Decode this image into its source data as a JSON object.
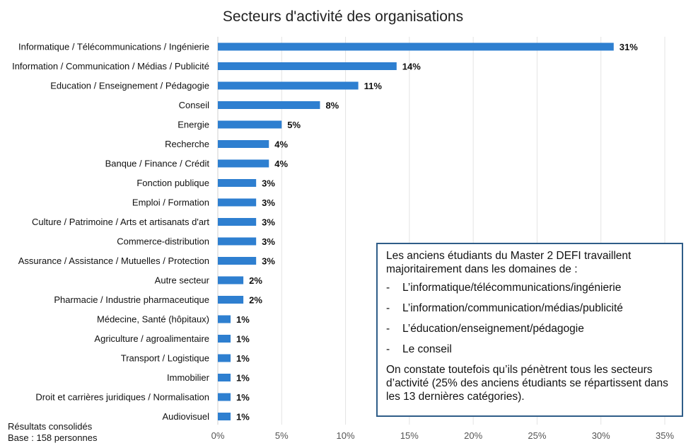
{
  "chart_data": {
    "type": "bar",
    "orientation": "horizontal",
    "title": "Secteurs d'activité des organisations",
    "categories": [
      "Informatique / Télécommunications / Ingénierie",
      "Information / Communication / Médias / Publicité",
      "Education / Enseignement / Pédagogie",
      "Conseil",
      "Energie",
      "Recherche",
      "Banque / Finance / Crédit",
      "Fonction publique",
      "Emploi / Formation",
      "Culture / Patrimoine / Arts et artisanats d'art",
      "Commerce-distribution",
      "Assurance / Assistance / Mutuelles / Protection",
      "Autre secteur",
      "Pharmacie / Industrie pharmaceutique",
      "Médecine, Santé (hôpitaux)",
      "Agriculture / agroalimentaire",
      "Transport / Logistique",
      "Immobilier",
      "Droit et carrières juridiques / Normalisation",
      "Audiovisuel"
    ],
    "values": [
      31,
      14,
      11,
      8,
      5,
      4,
      4,
      3,
      3,
      3,
      3,
      3,
      2,
      2,
      1,
      1,
      1,
      1,
      1,
      1
    ],
    "value_labels": [
      "31%",
      "14%",
      "11%",
      "8%",
      "5%",
      "4%",
      "4%",
      "3%",
      "3%",
      "3%",
      "3%",
      "3%",
      "2%",
      "2%",
      "1%",
      "1%",
      "1%",
      "1%",
      "1%",
      "1%"
    ],
    "xlim": [
      0,
      35
    ],
    "xticks": [
      "0%",
      "5%",
      "10%",
      "15%",
      "20%",
      "25%",
      "30%",
      "35%"
    ],
    "grid": "vertical",
    "bar_color": "#2e7fd0"
  },
  "callout": {
    "intro": "Les anciens étudiants du Master 2 DEFI travaillent majoritairement dans les domaines de :",
    "bullet_marker": "-",
    "items": [
      "L’informatique/télécommunications/ingénierie",
      "L’information/communication/médias/publicité",
      "L’éducation/enseignement/pédagogie",
      "Le conseil"
    ],
    "outro": "On constate toutefois qu’ils pénètrent tous les secteurs d’activité (25% des anciens étudiants se répartissent dans les 13 dernières catégories).",
    "border_color": "#2f5d88"
  },
  "footnote": {
    "line1": "Résultats consolidés",
    "line2": "Base : 158 personnes"
  }
}
